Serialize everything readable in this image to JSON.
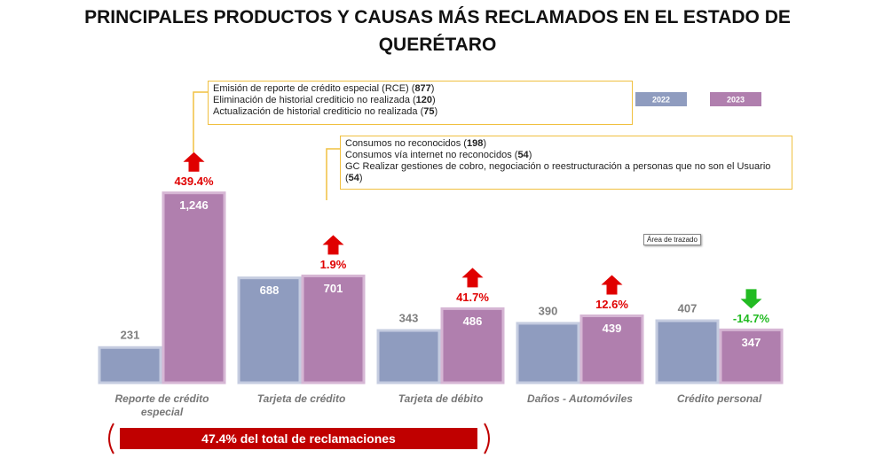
{
  "chart_data": {
    "type": "bar",
    "title": "PRINCIPALES PRODUCTOS Y CAUSAS MÁS RECLAMADOS EN EL ESTADO DE QUERÉTARO",
    "categories": [
      "Reporte de crédito especial",
      "Tarjeta de crédito",
      "Tarjeta de débito",
      "Daños - Automóviles",
      "Crédito personal"
    ],
    "series": [
      {
        "name": "2022",
        "color": "#8f9cbf",
        "values": [
          231,
          688,
          343,
          390,
          407
        ]
      },
      {
        "name": "2023",
        "color": "#b07fae",
        "values": [
          1246,
          701,
          486,
          439,
          347
        ],
        "value_labels": [
          "1,246",
          "701",
          "486",
          "439",
          "347"
        ]
      }
    ],
    "change": {
      "values": [
        439.4,
        1.9,
        41.7,
        12.6,
        -14.7
      ],
      "value_labels": [
        "439.4%",
        "1.9%",
        "41.7%",
        "12.6%",
        "-14.7%"
      ]
    },
    "ylim": [
      0,
      1500
    ],
    "callouts": [
      {
        "lines": [
          "Emisión de reporte de crédito especial (RCE) (877)",
          "Eliminación de historial crediticio no realizada (120)",
          "Actualización de historial crediticio no realizada (75)"
        ]
      },
      {
        "lines": [
          "Consumos no reconocidos (198)",
          "Consumos vía internet no reconocidos (54)",
          "GC Realizar gestiones de cobro, negociación o reestructuración a personas que no son el Usuario (54)"
        ]
      }
    ],
    "tooltip": "Área de trazado",
    "banner": "47.4% del total de reclamaciones"
  }
}
